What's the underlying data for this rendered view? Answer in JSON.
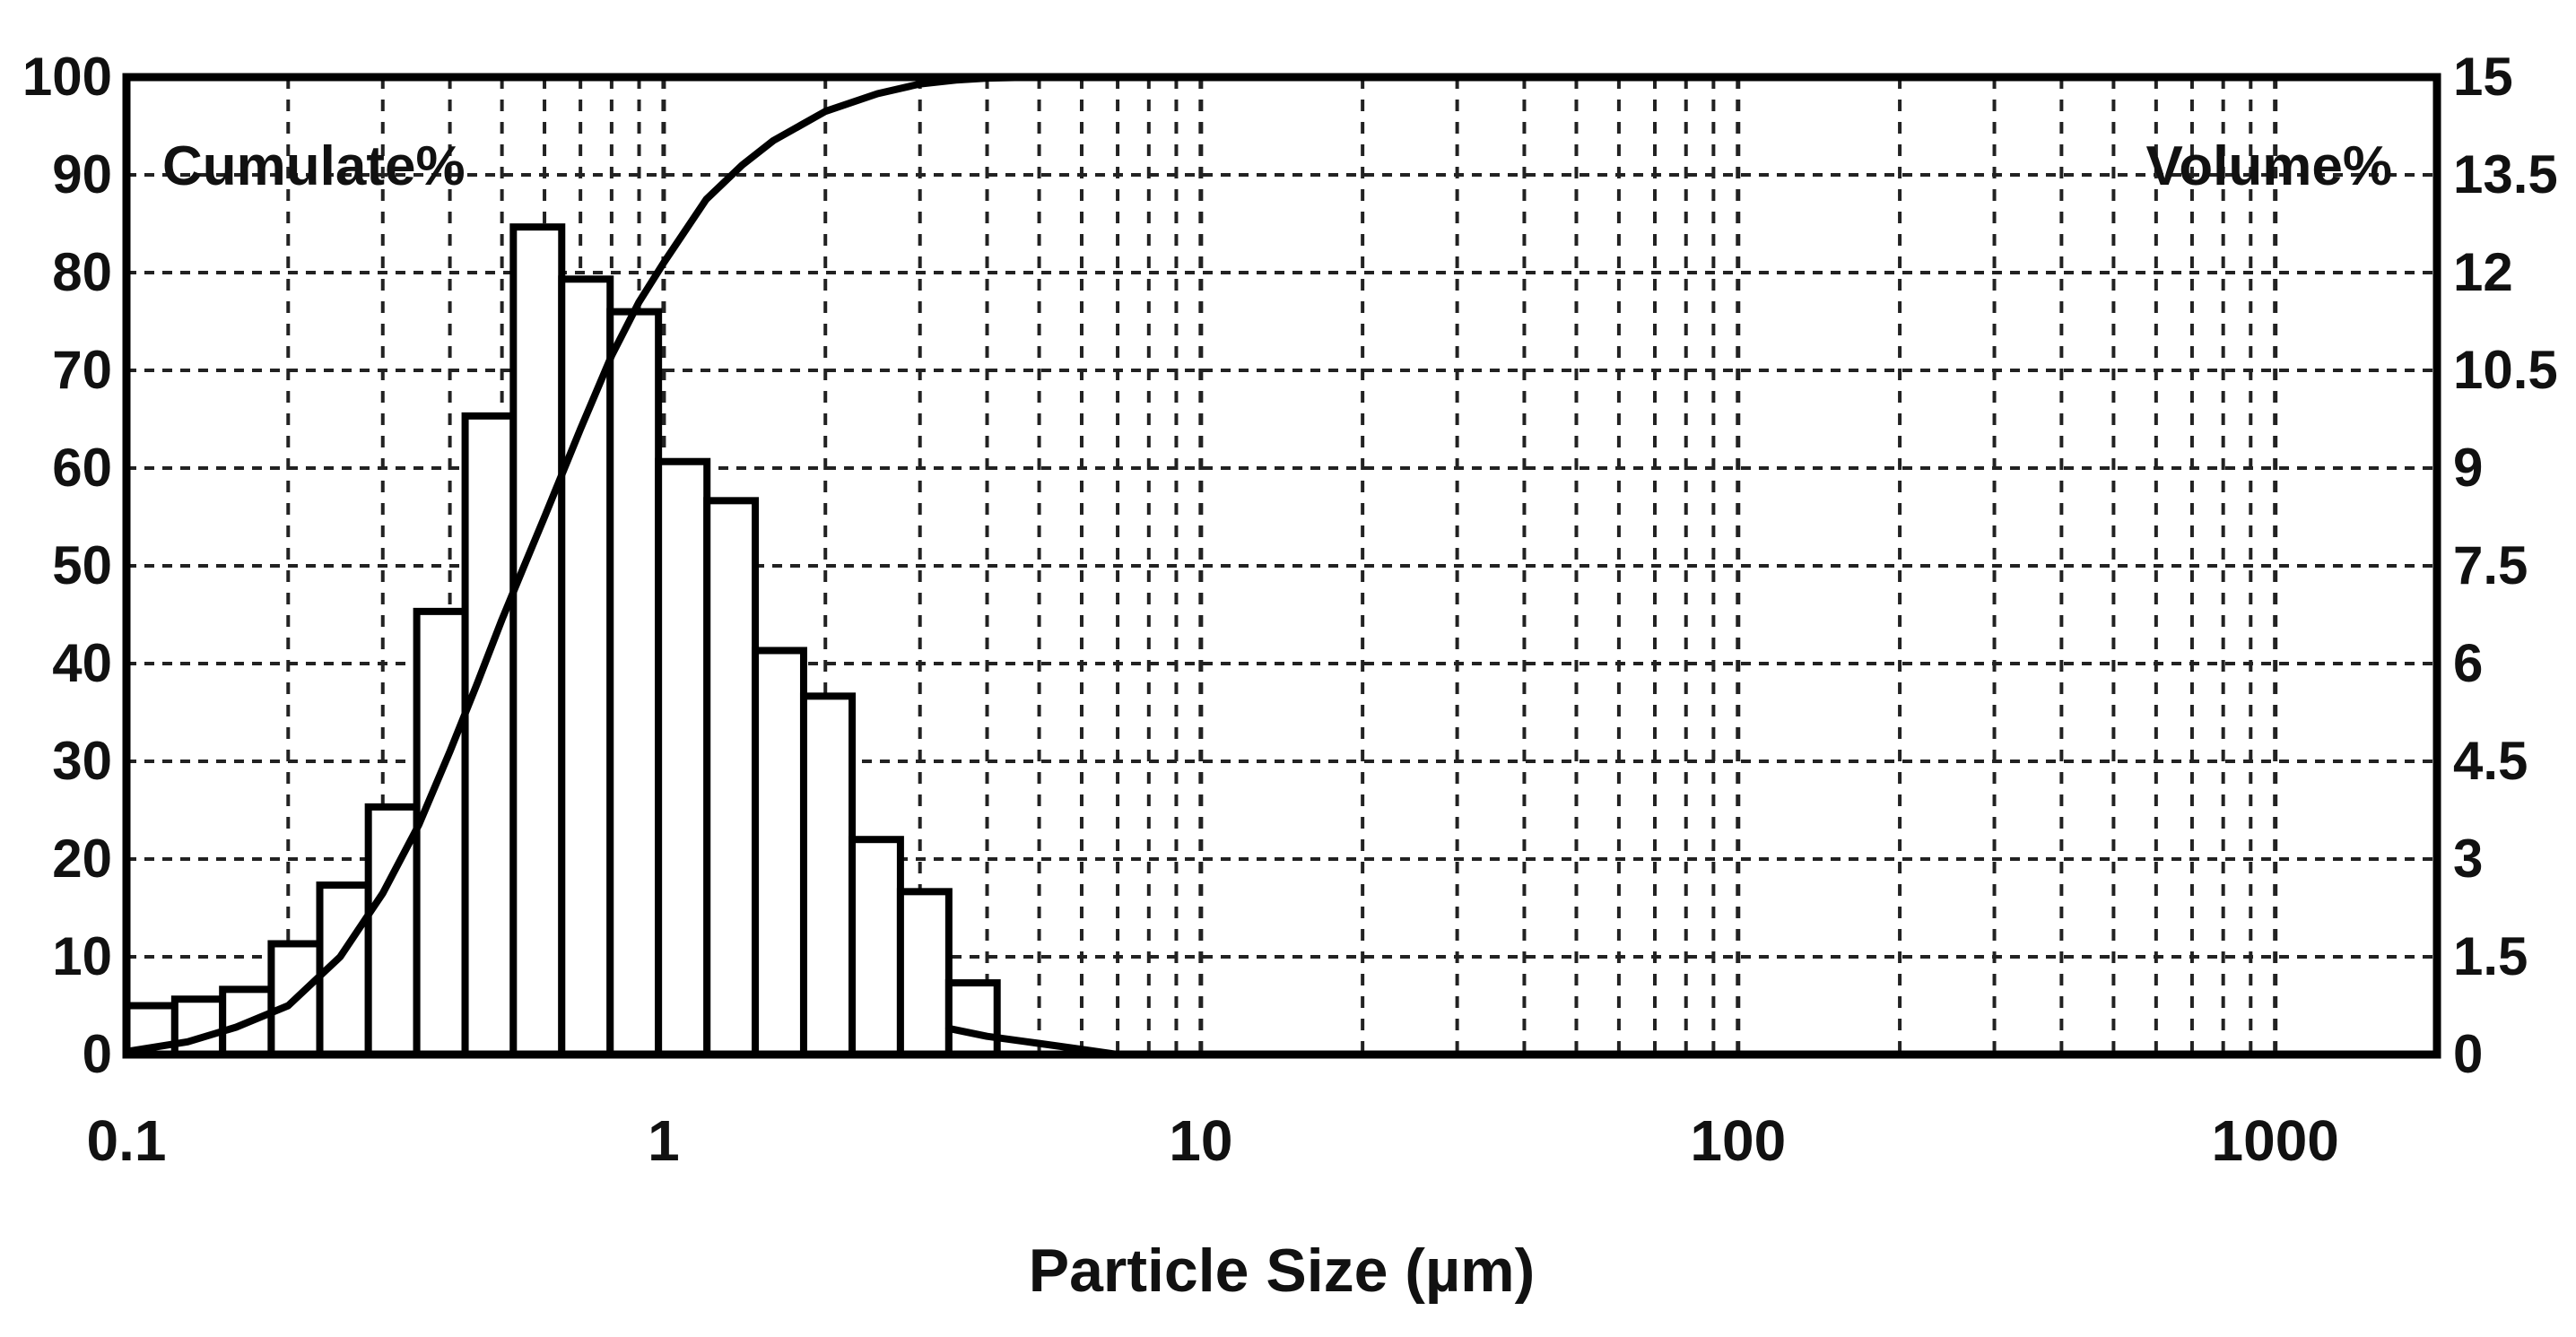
{
  "chart_data": {
    "type": "bar",
    "title": "",
    "xlabel": "Particle Size  (µm)",
    "x_scale": "log",
    "xlim": [
      0.1,
      2000
    ],
    "x_ticks": [
      0.1,
      1,
      10,
      100,
      1000
    ],
    "x_tick_labels": [
      "0.1",
      "1",
      "10",
      "100",
      "1000"
    ],
    "left_axis_label": "Cumulate%",
    "left_ylim": [
      0,
      100
    ],
    "left_ticks": [
      0,
      10,
      20,
      30,
      40,
      50,
      60,
      70,
      80,
      90,
      100
    ],
    "left_tick_labels": [
      "0",
      "10",
      "20",
      "30",
      "40",
      "50",
      "60",
      "70",
      "80",
      "90",
      "100"
    ],
    "right_axis_label": "Volume%",
    "right_ylim": [
      0,
      15
    ],
    "right_ticks": [
      0,
      1.5,
      3,
      4.5,
      6,
      7.5,
      9,
      10.5,
      12,
      13.5,
      15
    ],
    "right_tick_labels": [
      "0",
      "1.5",
      "3",
      "4.5",
      "6",
      "7.5",
      "9",
      "10.5",
      "12",
      "13.5",
      "15"
    ],
    "grid": true,
    "grid_style": "dashed",
    "series": [
      {
        "type": "bar",
        "axis": "right",
        "bin_edges": [
          0.1,
          0.123,
          0.151,
          0.186,
          0.229,
          0.282,
          0.347,
          0.427,
          0.525,
          0.646,
          0.795,
          0.978,
          1.204,
          1.481,
          1.822,
          2.243,
          2.759,
          3.395
        ],
        "values": [
          0.75,
          0.85,
          1.0,
          1.7,
          2.6,
          3.8,
          6.8,
          9.8,
          12.7,
          11.9,
          11.4,
          9.1,
          8.5,
          6.2,
          5.5,
          3.3,
          2.5,
          1.1
        ]
      },
      {
        "type": "line",
        "axis": "left",
        "x": [
          0.1,
          0.13,
          0.16,
          0.2,
          0.25,
          0.3,
          0.35,
          0.4,
          0.45,
          0.5,
          0.55,
          0.6,
          0.7,
          0.8,
          0.9,
          1.0,
          1.2,
          1.4,
          1.6,
          2.0,
          2.5,
          3.0,
          3.5,
          4.0,
          5.0,
          300
        ],
        "y": [
          0.3,
          1.3,
          2.8,
          5.0,
          10.0,
          16.5,
          23.5,
          31.0,
          38.0,
          44.5,
          50.0,
          55.0,
          64.0,
          71.5,
          77.0,
          81.0,
          87.5,
          91.0,
          93.5,
          96.5,
          98.3,
          99.3,
          99.7,
          99.9,
          100.0,
          100.0
        ]
      },
      {
        "type": "line",
        "axis": "right",
        "note_free": true,
        "x": [
          3.395,
          4.0,
          5.0,
          6.0,
          7.0
        ],
        "y": [
          0.4,
          0.28,
          0.17,
          0.08,
          0.0
        ]
      }
    ]
  }
}
